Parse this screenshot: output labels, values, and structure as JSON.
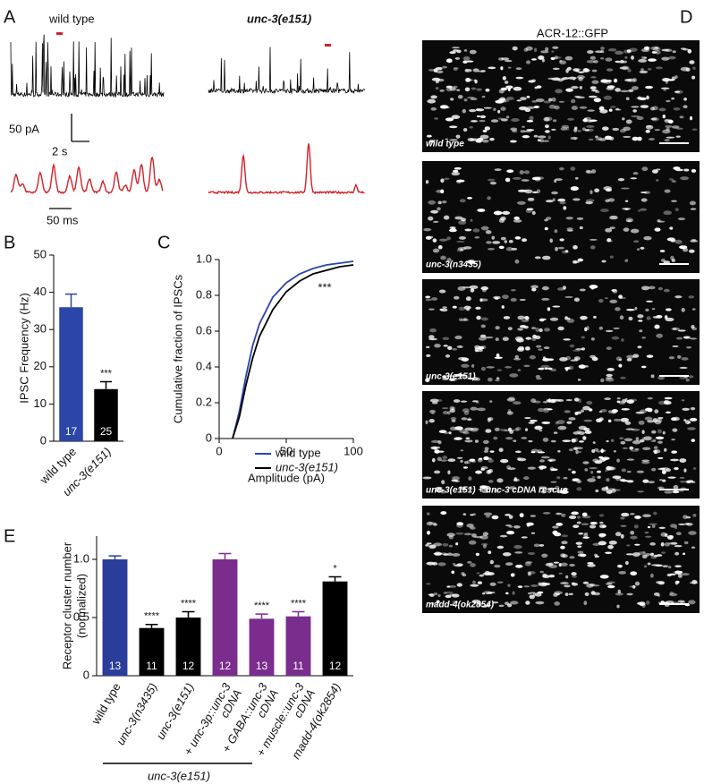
{
  "panel_letters": [
    "A",
    "B",
    "C",
    "D",
    "E"
  ],
  "panel_a": {
    "labels": [
      "wild type",
      "unc-3(e151)"
    ],
    "scale_current": "50 pA",
    "scale_time": "2 s",
    "scale_zoom": "50 ms"
  },
  "panel_d": {
    "title": "ACR-12::GFP",
    "images": [
      "wild type",
      "unc-3(n3435)",
      "unc-3(e151)",
      "unc-3(e151) + unc-3 cDNA rescue",
      "madd-4(ok2854)"
    ]
  },
  "chart_data": [
    {
      "type": "bar",
      "ylabel": "IPSC Frequency (Hz)",
      "categories": [
        "wild type",
        "unc-3(e151)"
      ],
      "values": [
        36,
        14
      ],
      "errors": [
        3.5,
        2
      ],
      "n_labels": [
        "17",
        "25"
      ],
      "annotations": [
        null,
        "***"
      ],
      "colors": [
        "#2b45a8",
        "#000000"
      ],
      "ylim": [
        0,
        50
      ],
      "yticks": [
        0,
        10,
        20,
        30,
        40,
        50
      ]
    },
    {
      "type": "line",
      "xlabel": "Amplitude (pA)",
      "ylabel": "Cumulative fraction of IPSCs",
      "x": [
        10,
        15,
        20,
        25,
        30,
        40,
        50,
        60,
        70,
        80,
        90,
        100
      ],
      "series": [
        {
          "name": "wild type",
          "color": "#2b45a8",
          "values": [
            0,
            0.15,
            0.35,
            0.52,
            0.64,
            0.79,
            0.87,
            0.92,
            0.95,
            0.97,
            0.98,
            0.99
          ]
        },
        {
          "name": "unc-3(e151)",
          "color": "#000000",
          "values": [
            0,
            0.12,
            0.3,
            0.45,
            0.57,
            0.72,
            0.82,
            0.88,
            0.92,
            0.94,
            0.96,
            0.97
          ]
        }
      ],
      "annotation": "***",
      "xlim": [
        0,
        100
      ],
      "ylim": [
        0,
        1
      ],
      "xticks": [
        0,
        50,
        100
      ],
      "yticks": [
        0,
        0.2,
        0.4,
        0.6,
        0.8,
        {
          "value": 1,
          "label": "1.0"
        }
      ]
    },
    {
      "type": "bar",
      "ylabel": [
        "Receptor cluster number",
        "(normalized)"
      ],
      "categories": [
        [
          "wild type"
        ],
        [
          "unc-3(n3435)"
        ],
        [
          "unc-3(e151)"
        ],
        [
          "+ unc-3p::unc-3",
          "cDNA"
        ],
        [
          "+ GABA::unc-3",
          "cDNA"
        ],
        [
          "+ muscle::unc-3",
          "cDNA"
        ],
        [
          "madd-4(ok2854)"
        ]
      ],
      "values": [
        1.0,
        0.41,
        0.5,
        1.0,
        0.49,
        0.51,
        0.81
      ],
      "errors": [
        0.03,
        0.03,
        0.05,
        0.05,
        0.04,
        0.04,
        0.04
      ],
      "n_labels": [
        "13",
        "11",
        "12",
        "12",
        "13",
        "11",
        "12"
      ],
      "annotations": [
        null,
        "****",
        "****",
        null,
        "****",
        "****",
        "*"
      ],
      "colors": [
        "#2b3d9b",
        "#000000",
        "#000000",
        "#7b2d8e",
        "#7b2d8e",
        "#7b2d8e",
        "#000000"
      ],
      "group_label": "unc-3(e151)",
      "ylim": [
        0,
        1.2
      ],
      "yticks": [
        0,
        0.5,
        {
          "value": 1,
          "label": "1.0"
        }
      ]
    }
  ]
}
